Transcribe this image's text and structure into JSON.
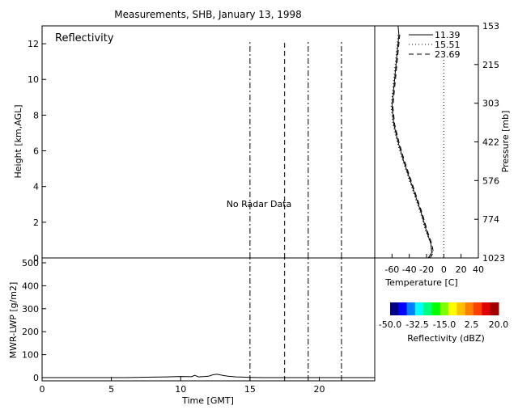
{
  "title": "Measurements, SHB, January 13, 1998",
  "colors": {
    "axis": "#000000",
    "background": "#ffffff"
  },
  "chart_data": [
    {
      "type": "line",
      "panel": "reflectivity",
      "label": "Reflectivity",
      "annotation": "No Radar Data",
      "ylabel": "Height [km,AGL]",
      "xlim": [
        0,
        24
      ],
      "ylim": [
        0,
        13
      ],
      "y_ticks": [
        0,
        2,
        4,
        6,
        8,
        10,
        12
      ],
      "x_ticks": [
        0,
        5,
        10,
        15,
        20
      ],
      "sounding_times": [
        15.0,
        17.5,
        19.2,
        21.6
      ],
      "sounding_styles": [
        "dash-dot",
        "dashed",
        "dash-dot",
        "dash-dot"
      ]
    },
    {
      "type": "line",
      "panel": "temperature-profile",
      "xlabel": "Temperature [C]",
      "ylabel": "Pressure [mb]",
      "xlim": [
        -80,
        40
      ],
      "ylim": [
        0,
        13
      ],
      "x_ticks": [
        -60,
        -40,
        -20,
        0,
        20,
        40
      ],
      "pressure_tick_labels": [
        "153",
        "215",
        "303",
        "422",
        "576",
        "774",
        "1023"
      ],
      "legend": [
        "11.39",
        "15.51",
        "23.69"
      ],
      "legend_position": "top-right",
      "series": [
        {
          "name": "11.39",
          "style": "solid",
          "x": [
            -18,
            -14,
            -15,
            -20,
            -26,
            -33,
            -40,
            -47,
            -53,
            -58,
            -60,
            -58,
            -56,
            -54,
            -52,
            -53
          ],
          "y": [
            0,
            0.3,
            0.8,
            1.5,
            2.5,
            3.5,
            4.5,
            5.5,
            6.5,
            7.5,
            8.5,
            9.5,
            10.5,
            11.5,
            12.5,
            13
          ]
        },
        {
          "name": "15.51",
          "style": "dotted",
          "x": [
            -17,
            -13,
            -15,
            -21,
            -27,
            -34,
            -41,
            -48,
            -54,
            -59,
            -61,
            -59,
            -57,
            -55,
            -53
          ],
          "y": [
            0,
            0.3,
            0.8,
            1.5,
            2.5,
            3.5,
            4.5,
            5.5,
            6.5,
            7.5,
            8.5,
            9.5,
            10.5,
            11.5,
            12.5
          ]
        },
        {
          "name": "23.69",
          "style": "dashed",
          "x": [
            -16,
            -12,
            -14,
            -19,
            -25,
            -32,
            -39,
            -46,
            -52,
            -57,
            -59,
            -57,
            -55,
            -53,
            -51
          ],
          "y": [
            0,
            0.3,
            0.8,
            1.5,
            2.5,
            3.5,
            4.5,
            5.5,
            6.5,
            7.5,
            8.5,
            9.5,
            10.5,
            11.5,
            12.5
          ]
        }
      ],
      "reference_line_x": 0
    },
    {
      "type": "line",
      "panel": "lwp",
      "xlabel": "Time [GMT]",
      "ylabel": "MWR-LWP [g/m2]",
      "xlim": [
        0,
        24
      ],
      "ylim": [
        0,
        500
      ],
      "y_ticks": [
        0,
        100,
        200,
        300,
        400,
        500
      ],
      "x_ticks": [
        0,
        5,
        10,
        15,
        20
      ],
      "sounding_times": [
        15.0,
        17.5,
        19.2,
        21.6
      ],
      "sounding_styles": [
        "dash-dot",
        "dashed",
        "dash-dot",
        "dash-dot"
      ],
      "series": [
        {
          "name": "",
          "x": [
            0,
            2,
            4,
            6,
            8,
            9,
            10,
            10.8,
            11.0,
            11.3,
            12,
            12.3,
            12.6,
            13.0,
            13.4,
            14,
            14.5,
            15,
            16,
            17,
            18,
            19,
            20,
            21,
            22,
            23,
            24
          ],
          "y": [
            0,
            0,
            0,
            0,
            2,
            3,
            5,
            4,
            10,
            3,
            6,
            12,
            15,
            10,
            6,
            3,
            2,
            1,
            0,
            0,
            0,
            0,
            0,
            0,
            0,
            0,
            0
          ]
        }
      ]
    },
    {
      "type": "heatmap",
      "panel": "colorbar",
      "label": "Reflectivity (dBZ)",
      "tick_labels": [
        "-50.0",
        "-32.5",
        "-15.0",
        "2.5",
        "20.0"
      ],
      "range": [
        -50,
        20
      ],
      "colors": [
        "#000080",
        "#0000ff",
        "#0080ff",
        "#00ffff",
        "#00ff80",
        "#00ff00",
        "#80ff00",
        "#ffff00",
        "#ffc000",
        "#ff8000",
        "#ff4000",
        "#e00000",
        "#a00000"
      ]
    }
  ]
}
